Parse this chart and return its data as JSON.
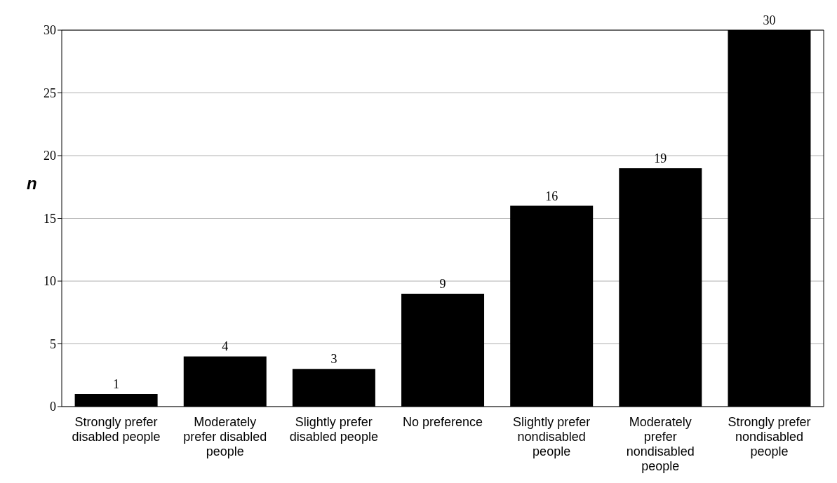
{
  "chart_data": {
    "type": "bar",
    "ylabel": "n",
    "categories": [
      "Strongly prefer disabled people",
      "Moderately prefer disabled people",
      "Slightly prefer disabled people",
      "No preference",
      "Slightly prefer nondisabled people",
      "Moderately prefer nondisabled people",
      "Strongly prefer nondisabled people"
    ],
    "values": [
      1,
      4,
      3,
      9,
      16,
      19,
      30
    ],
    "color": "#000000",
    "ylim": [
      0,
      30
    ],
    "yticks": [
      0,
      5,
      10,
      15,
      20,
      25,
      30
    ],
    "grid": "y",
    "data_labels": true
  }
}
